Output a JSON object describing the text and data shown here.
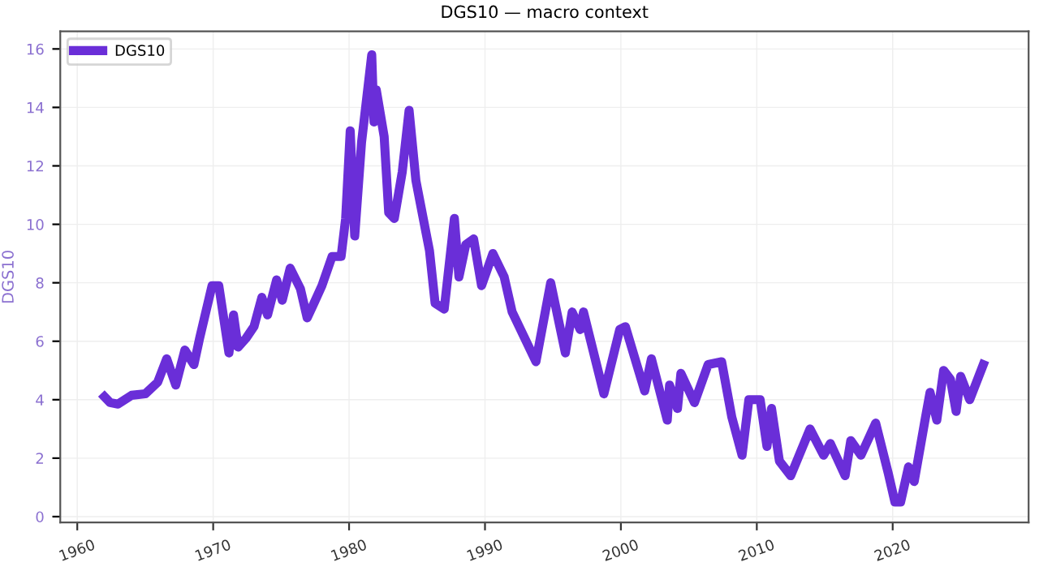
{
  "chart_data": {
    "type": "line",
    "title": "DGS10 — macro context",
    "ylabel": "DGS10",
    "x": [
      "1962-01",
      "1962-06",
      "1963-01",
      "1964-01",
      "1965-01",
      "1965-12",
      "1966-08",
      "1967-04",
      "1967-12",
      "1968-08",
      "1969-01",
      "1969-12",
      "1970-06",
      "1971-03",
      "1971-07",
      "1971-11",
      "1972-06",
      "1973-01",
      "1973-08",
      "1974-01",
      "1974-09",
      "1975-02",
      "1975-09",
      "1976-06",
      "1976-12",
      "1977-06",
      "1978-01",
      "1978-10",
      "1979-06",
      "1979-10",
      "1980-02",
      "1980-06",
      "1980-12",
      "1981-09",
      "1981-11",
      "1982-01",
      "1982-08",
      "1982-12",
      "1983-05",
      "1983-12",
      "1984-06",
      "1984-12",
      "1985-06",
      "1985-12",
      "1986-05",
      "1987-01",
      "1987-10",
      "1988-02",
      "1988-08",
      "1989-03",
      "1989-10",
      "1990-08",
      "1991-06",
      "1992-01",
      "1993-10",
      "1994-11",
      "1995-12",
      "1996-06",
      "1997-01",
      "1997-04",
      "1998-10",
      "1999-12",
      "2000-05",
      "2001-10",
      "2002-04",
      "2003-06",
      "2003-08",
      "2004-03",
      "2004-06",
      "2005-06",
      "2006-06",
      "2007-06",
      "2008-03",
      "2008-12",
      "2009-06",
      "2010-04",
      "2010-10",
      "2011-02",
      "2011-09",
      "2012-07",
      "2013-12",
      "2014-12",
      "2015-06",
      "2016-07",
      "2016-12",
      "2017-09",
      "2018-10",
      "2019-09",
      "2020-03",
      "2020-08",
      "2021-03",
      "2021-08",
      "2022-06",
      "2022-10",
      "2023-04",
      "2023-10",
      "2024-04",
      "2024-09",
      "2025-01",
      "2025-09",
      "2026-09"
    ],
    "series": [
      {
        "name": "DGS10",
        "color": "#6a2ed8",
        "values": [
          4.1,
          3.9,
          3.85,
          4.15,
          4.2,
          4.6,
          5.4,
          4.5,
          5.7,
          5.2,
          6.1,
          7.9,
          7.9,
          5.6,
          6.9,
          5.8,
          6.1,
          6.5,
          7.5,
          6.9,
          8.1,
          7.4,
          8.5,
          7.8,
          6.8,
          7.3,
          7.9,
          8.9,
          8.9,
          10.2,
          13.2,
          9.6,
          12.8,
          15.8,
          13.5,
          14.6,
          13.0,
          10.4,
          10.2,
          11.8,
          13.9,
          11.5,
          10.3,
          9.1,
          7.3,
          7.1,
          10.2,
          8.2,
          9.3,
          9.5,
          7.9,
          9.0,
          8.2,
          7.0,
          5.3,
          8.0,
          5.6,
          7.0,
          6.4,
          7.0,
          4.2,
          6.4,
          6.5,
          4.3,
          5.4,
          3.3,
          4.5,
          3.7,
          4.9,
          3.9,
          5.2,
          5.3,
          3.4,
          2.1,
          4.0,
          4.0,
          2.4,
          3.7,
          1.9,
          1.4,
          3.0,
          2.1,
          2.5,
          1.4,
          2.6,
          2.1,
          3.2,
          1.5,
          0.5,
          0.5,
          1.7,
          1.2,
          3.4,
          4.25,
          3.3,
          5.0,
          4.7,
          3.6,
          4.8,
          4.0,
          5.2
        ]
      }
    ],
    "xlim": [
      "1958-10",
      "2030-01"
    ],
    "xticks": [
      "1960",
      "1970",
      "1980",
      "1990",
      "2000",
      "2010",
      "2020"
    ],
    "ylim": [
      -0.2,
      16.6
    ],
    "yticks": [
      0,
      2,
      4,
      6,
      8,
      10,
      12,
      14,
      16
    ],
    "grid": true,
    "legend": "top left",
    "line_style": "solid",
    "marker": "none"
  }
}
